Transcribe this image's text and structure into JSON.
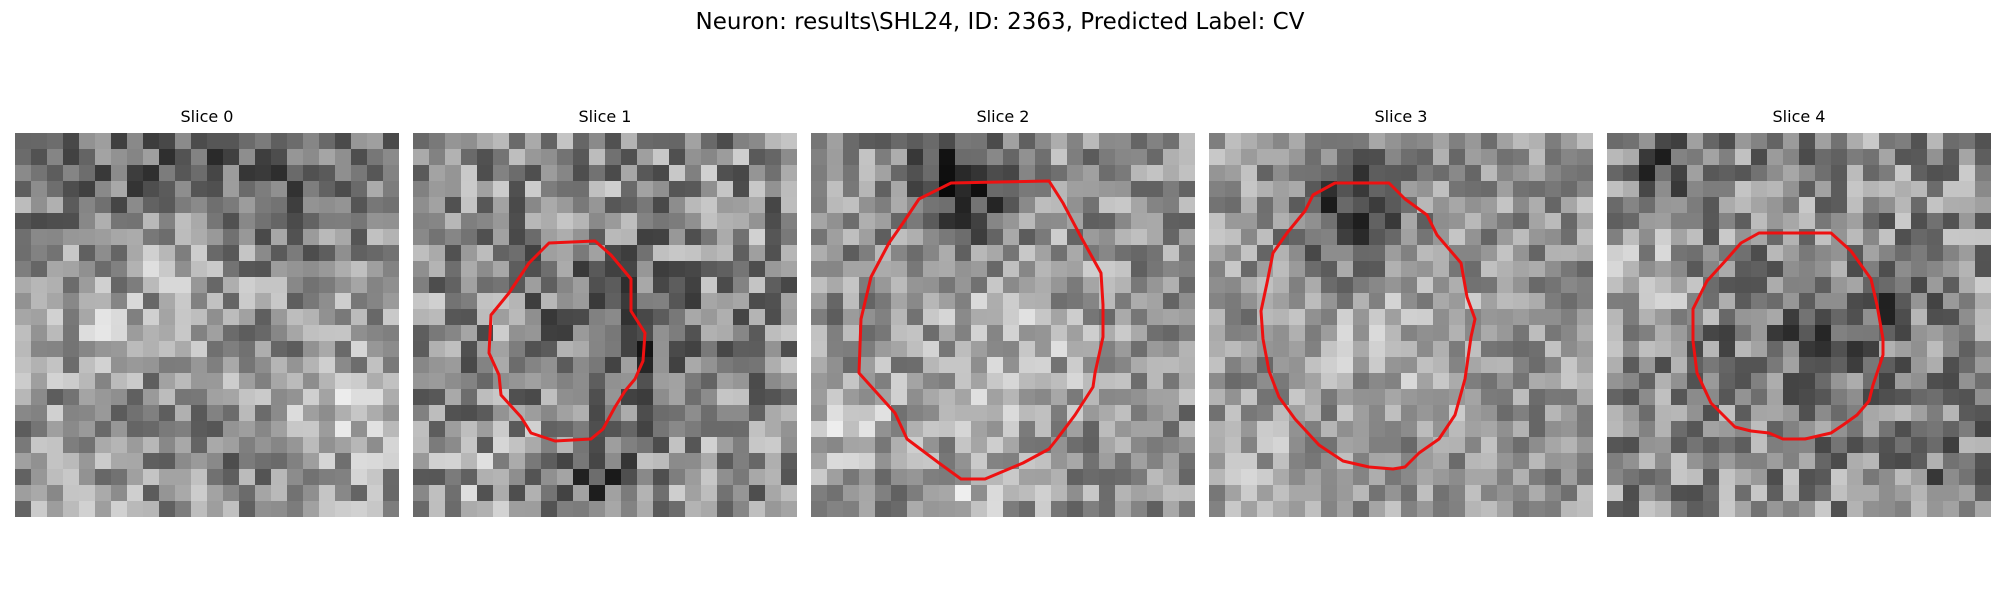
{
  "figure": {
    "title": "Neuron: results\\SHL24, ID: 2363, Predicted Label: CV",
    "contour_color": "#ee1111"
  },
  "panels": [
    {
      "title": "Slice 0",
      "has_contour": false
    },
    {
      "title": "Slice 1",
      "has_contour": true
    },
    {
      "title": "Slice 2",
      "has_contour": true
    },
    {
      "title": "Slice 3",
      "has_contour": true
    },
    {
      "title": "Slice 4",
      "has_contour": true
    }
  ]
}
